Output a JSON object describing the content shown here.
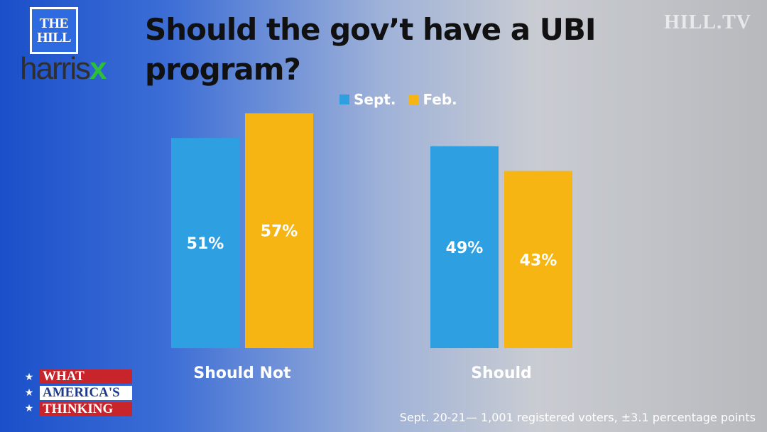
{
  "branding": {
    "hill_logo_line1": "THE",
    "hill_logo_line2": "HILL",
    "harris_logo_main": "harris",
    "harris_logo_x": "x",
    "watermark": "HILL.TV",
    "show_logo_stars": "★",
    "show_logo_line1": "WHAT",
    "show_logo_line2": "AMERICA'S",
    "show_logo_line3": "THINKING"
  },
  "footnote": "Sept. 20-21— 1,001 registered voters, ±3.1 percentage points",
  "colors": {
    "sept": "#2e9fe0",
    "feb": "#f7b514"
  },
  "chart_data": {
    "type": "bar",
    "title": "Should the gov’t have a UBI program?",
    "categories": [
      "Should Not",
      "Should"
    ],
    "series": [
      {
        "name": "Sept.",
        "values": [
          51,
          49
        ],
        "labels": [
          "51%",
          "49%"
        ]
      },
      {
        "name": "Feb.",
        "values": [
          57,
          43
        ],
        "labels": [
          "57%",
          "43%"
        ]
      }
    ],
    "ylim": [
      0,
      60
    ],
    "grid": false,
    "legend_position": "top-center",
    "xlabel": "",
    "ylabel": ""
  }
}
